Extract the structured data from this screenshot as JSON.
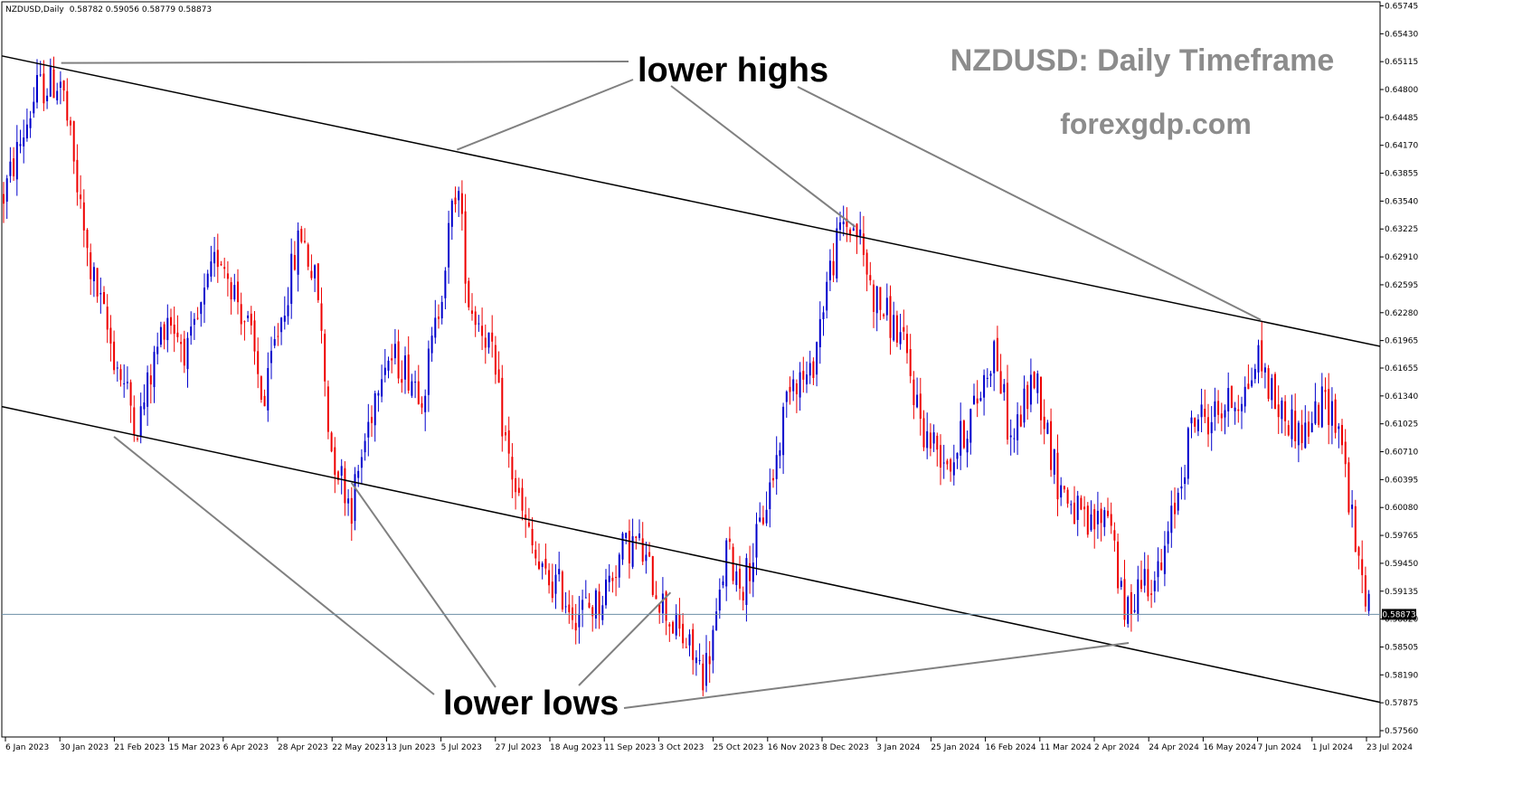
{
  "header": {
    "symbol": "NZDUSD,Daily",
    "ohlc": "0.58782 0.59056 0.58779 0.58873"
  },
  "watermark": {
    "title": "NZDUSD: Daily Timeframe",
    "site": "forexgdp.com"
  },
  "annotations": {
    "upper": "lower highs",
    "lower": "lower lows"
  },
  "colors": {
    "bull": "#0000cc",
    "bear": "#ee0000",
    "trendline": "#000000",
    "pointer": "#808080",
    "price_line": "#6d8fa6",
    "title": "#8c8c8c"
  },
  "chart_data": {
    "type": "candlestick",
    "instrument": "NZDUSD",
    "timeframe": "Daily",
    "last_price": "0.58873",
    "ylim": [
      0.5756,
      0.6576
    ],
    "y_ticks": [
      "0.65745",
      "0.65430",
      "0.65115",
      "0.64800",
      "0.64485",
      "0.64170",
      "0.63855",
      "0.63540",
      "0.63225",
      "0.62910",
      "0.62595",
      "0.62280",
      "0.61965",
      "0.61655",
      "0.61340",
      "0.61025",
      "0.60710",
      "0.60395",
      "0.60080",
      "0.59765",
      "0.59450",
      "0.59135",
      "0.58820",
      "0.58505",
      "0.58190",
      "0.57875",
      "0.57560"
    ],
    "x_ticks": [
      "6 Jan 2023",
      "30 Jan 2023",
      "21 Feb 2023",
      "15 Mar 2023",
      "6 Apr 2023",
      "28 Apr 2023",
      "22 May 2023",
      "13 Jun 2023",
      "5 Jul 2023",
      "27 Jul 2023",
      "18 Aug 2023",
      "11 Sep 2023",
      "3 Oct 2023",
      "25 Oct 2023",
      "16 Nov 2023",
      "8 Dec 2023",
      "3 Jan 2024",
      "25 Jan 2024",
      "16 Feb 2024",
      "11 Mar 2024",
      "2 Apr 2024",
      "24 Apr 2024",
      "16 May 2024",
      "7 Jun 2024",
      "1 Jul 2024",
      "23 Jul 2024"
    ],
    "close_path": [
      {
        "date": "6 Jan 2023",
        "close": 0.636
      },
      {
        "date": "20 Jan 2023",
        "close": 0.648
      },
      {
        "date": "30 Jan 2023",
        "close": 0.649
      },
      {
        "date": "10 Feb 2023",
        "close": 0.629
      },
      {
        "date": "21 Feb 2023",
        "close": 0.618
      },
      {
        "date": "3 Mar 2023",
        "close": 0.61
      },
      {
        "date": "15 Mar 2023",
        "close": 0.623
      },
      {
        "date": "24 Mar 2023",
        "close": 0.618
      },
      {
        "date": "6 Apr 2023",
        "close": 0.63
      },
      {
        "date": "18 Apr 2023",
        "close": 0.621
      },
      {
        "date": "25 Apr 2023",
        "close": 0.612
      },
      {
        "date": "28 Apr 2023",
        "close": 0.618
      },
      {
        "date": "10 May 2023",
        "close": 0.632
      },
      {
        "date": "17 May 2023",
        "close": 0.625
      },
      {
        "date": "22 May 2023",
        "close": 0.608
      },
      {
        "date": "31 May 2023",
        "close": 0.601
      },
      {
        "date": "13 Jun 2023",
        "close": 0.618
      },
      {
        "date": "21 Jun 2023",
        "close": 0.617
      },
      {
        "date": "30 Jun 2023",
        "close": 0.614
      },
      {
        "date": "5 Jul 2023",
        "close": 0.621
      },
      {
        "date": "14 Jul 2023",
        "close": 0.638
      },
      {
        "date": "19 Jul 2023",
        "close": 0.624
      },
      {
        "date": "27 Jul 2023",
        "close": 0.62
      },
      {
        "date": "4 Aug 2023",
        "close": 0.607
      },
      {
        "date": "10 Aug 2023",
        "close": 0.6
      },
      {
        "date": "18 Aug 2023",
        "close": 0.593
      },
      {
        "date": "25 Aug 2023",
        "close": 0.592
      },
      {
        "date": "1 Sep 2023",
        "close": 0.589
      },
      {
        "date": "11 Sep 2023",
        "close": 0.59
      },
      {
        "date": "21 Sep 2023",
        "close": 0.596
      },
      {
        "date": "27 Sep 2023",
        "close": 0.597
      },
      {
        "date": "3 Oct 2023",
        "close": 0.593
      },
      {
        "date": "11 Oct 2023",
        "close": 0.588
      },
      {
        "date": "16 Oct 2023",
        "close": 0.586
      },
      {
        "date": "25 Oct 2023",
        "close": 0.582
      },
      {
        "date": "31 Oct 2023",
        "close": 0.589
      },
      {
        "date": "3 Nov 2023",
        "close": 0.596
      },
      {
        "date": "10 Nov 2023",
        "close": 0.592
      },
      {
        "date": "16 Nov 2023",
        "close": 0.597
      },
      {
        "date": "24 Nov 2023",
        "close": 0.606
      },
      {
        "date": "30 Nov 2023",
        "close": 0.616
      },
      {
        "date": "8 Dec 2023",
        "close": 0.615
      },
      {
        "date": "15 Dec 2023",
        "close": 0.626
      },
      {
        "date": "22 Dec 2023",
        "close": 0.633
      },
      {
        "date": "28 Dec 2023",
        "close": 0.632
      },
      {
        "date": "3 Jan 2024",
        "close": 0.625
      },
      {
        "date": "15 Jan 2024",
        "close": 0.62
      },
      {
        "date": "25 Jan 2024",
        "close": 0.609
      },
      {
        "date": "5 Feb 2024",
        "close": 0.606
      },
      {
        "date": "16 Feb 2024",
        "close": 0.613
      },
      {
        "date": "23 Feb 2024",
        "close": 0.619
      },
      {
        "date": "1 Mar 2024",
        "close": 0.608
      },
      {
        "date": "11 Mar 2024",
        "close": 0.616
      },
      {
        "date": "20 Mar 2024",
        "close": 0.604
      },
      {
        "date": "2 Apr 2024",
        "close": 0.598
      },
      {
        "date": "11 Apr 2024",
        "close": 0.601
      },
      {
        "date": "17 Apr 2024",
        "close": 0.588
      },
      {
        "date": "24 Apr 2024",
        "close": 0.593
      },
      {
        "date": "2 May 2024",
        "close": 0.593
      },
      {
        "date": "16 May 2024",
        "close": 0.611
      },
      {
        "date": "23 May 2024",
        "close": 0.611
      },
      {
        "date": "7 Jun 2024",
        "close": 0.614
      },
      {
        "date": "12 Jun 2024",
        "close": 0.618
      },
      {
        "date": "20 Jun 2024",
        "close": 0.612
      },
      {
        "date": "1 Jul 2024",
        "close": 0.609
      },
      {
        "date": "10 Jul 2024",
        "close": 0.613
      },
      {
        "date": "16 Jul 2024",
        "close": 0.61
      },
      {
        "date": "23 Jul 2024",
        "close": 0.595
      },
      {
        "date": "29 Jul 2024",
        "close": 0.589
      }
    ],
    "upper_channel": [
      {
        "date": "6 Jan 2023",
        "value": 0.6518
      },
      {
        "date": "29 Jul 2024",
        "value": 0.619
      }
    ],
    "lower_channel": [
      {
        "date": "6 Jan 2023",
        "value": 0.6122
      },
      {
        "date": "29 Jul 2024",
        "value": 0.5788
      }
    ],
    "lower_highs_at": [
      {
        "date": "30 Jan 2023",
        "value": 0.651
      },
      {
        "date": "14 Jul 2023",
        "value": 0.6412
      },
      {
        "date": "27 Dec 2023",
        "value": 0.6325
      },
      {
        "date": "13 Jun 2024",
        "value": 0.622
      }
    ],
    "lower_lows_at": [
      {
        "date": "21 Feb 2023",
        "value": 0.6088
      },
      {
        "date": "31 May 2023",
        "value": 0.6036
      },
      {
        "date": "11 Oct 2023",
        "value": 0.5912
      },
      {
        "date": "19 Apr 2024",
        "value": 0.5855
      }
    ]
  }
}
